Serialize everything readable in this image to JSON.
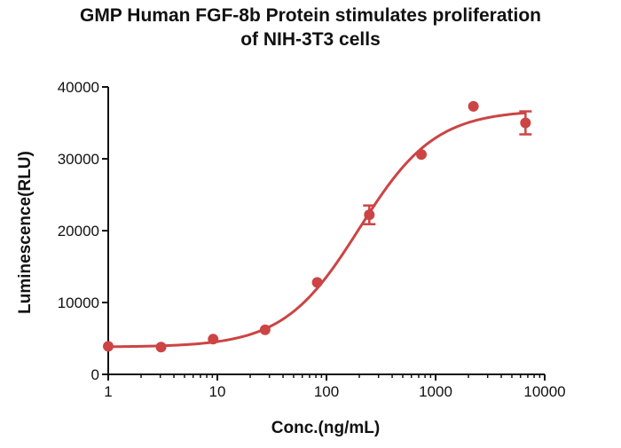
{
  "chart_data": {
    "type": "scatter",
    "title_lines": [
      "GMP Human FGF-8b Protein stimulates proliferation",
      "of NIH-3T3 cells"
    ],
    "xlabel": "Conc.(ng/mL)",
    "ylabel": "Luminescence(RLU)",
    "x_scale": "log",
    "xlim": [
      1,
      10000
    ],
    "ylim": [
      0,
      40000
    ],
    "x_ticks": [
      1,
      10,
      100,
      1000,
      10000
    ],
    "x_tick_labels": [
      "1",
      "10",
      "100",
      "1000",
      "10000"
    ],
    "y_ticks": [
      0,
      10000,
      20000,
      30000,
      40000
    ],
    "y_tick_labels": [
      "0",
      "10000",
      "20000",
      "30000",
      "40000"
    ],
    "grid": false,
    "color": "#cc4444",
    "points": [
      {
        "x": 1,
        "y": 3900,
        "err": 200
      },
      {
        "x": 3.05,
        "y": 3800,
        "err": 200
      },
      {
        "x": 9.15,
        "y": 4900,
        "err": 250
      },
      {
        "x": 27.4,
        "y": 6200,
        "err": 250
      },
      {
        "x": 82.3,
        "y": 12800,
        "err": 300
      },
      {
        "x": 247,
        "y": 22200,
        "err": 1300
      },
      {
        "x": 741,
        "y": 30600,
        "err": 300
      },
      {
        "x": 2222,
        "y": 37300,
        "err": 300
      },
      {
        "x": 6667,
        "y": 35000,
        "err": 1600
      }
    ],
    "fit": {
      "model": "4PL",
      "bottom": 3800,
      "top": 36800,
      "ec50": 200,
      "hill": 1.25
    }
  }
}
